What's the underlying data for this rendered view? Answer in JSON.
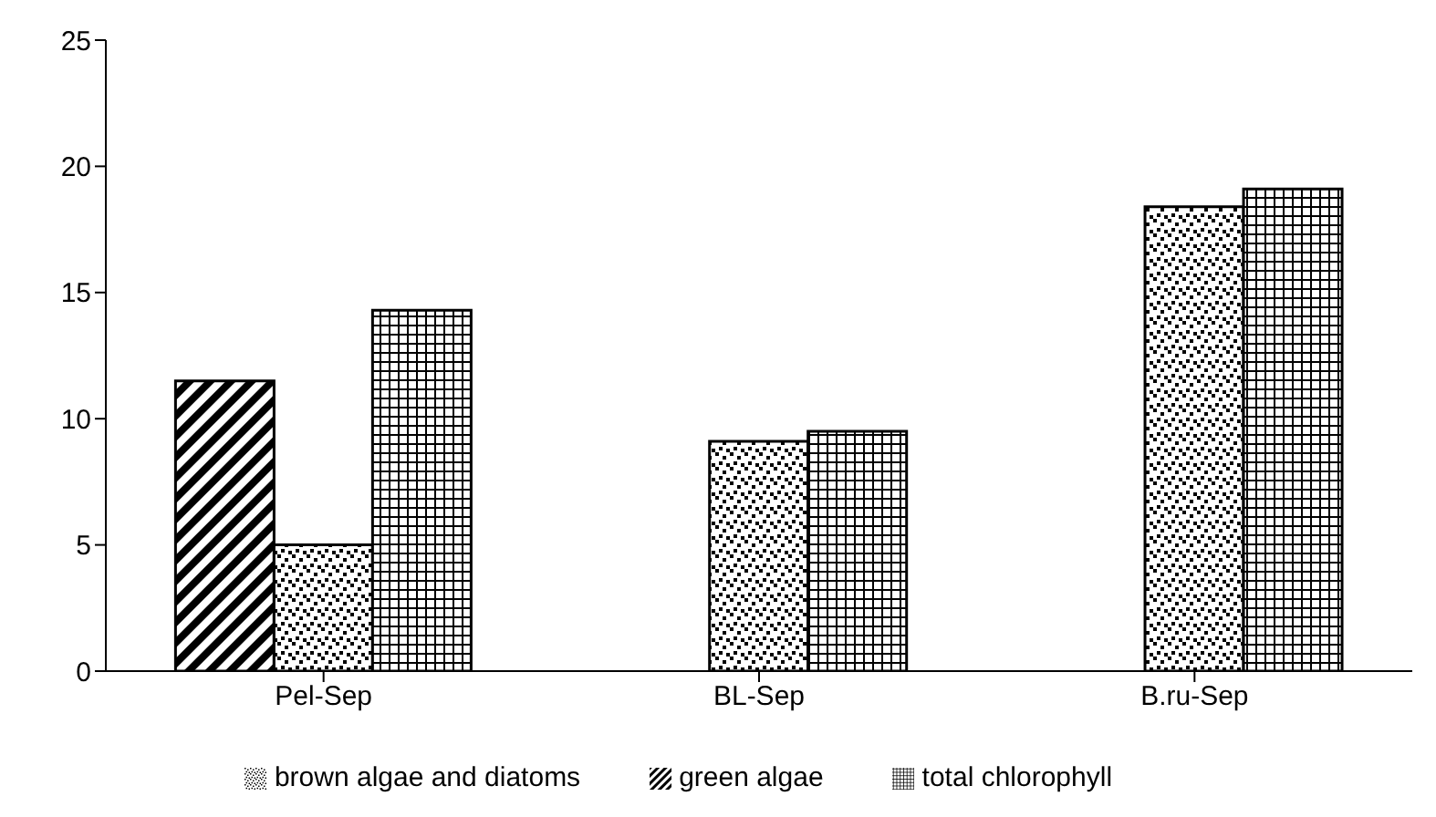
{
  "chart_data": {
    "type": "bar",
    "categories": [
      "Pel-Sep",
      "BL-Sep",
      "B.ru-Sep"
    ],
    "series": [
      {
        "name": "green algae",
        "color": "#000000",
        "values": [
          11.5,
          0,
          0
        ]
      },
      {
        "name": "brown algae and diatoms",
        "color": "#000000",
        "values": [
          5.0,
          9.1,
          18.4
        ]
      },
      {
        "name": "total chlorophyll",
        "color": "#000000",
        "values": [
          14.3,
          9.5,
          19.1
        ]
      }
    ],
    "ylim": [
      0,
      25
    ],
    "yticks": [
      0,
      5,
      10,
      15,
      20,
      25
    ],
    "grid": false,
    "legend": "bottom"
  }
}
